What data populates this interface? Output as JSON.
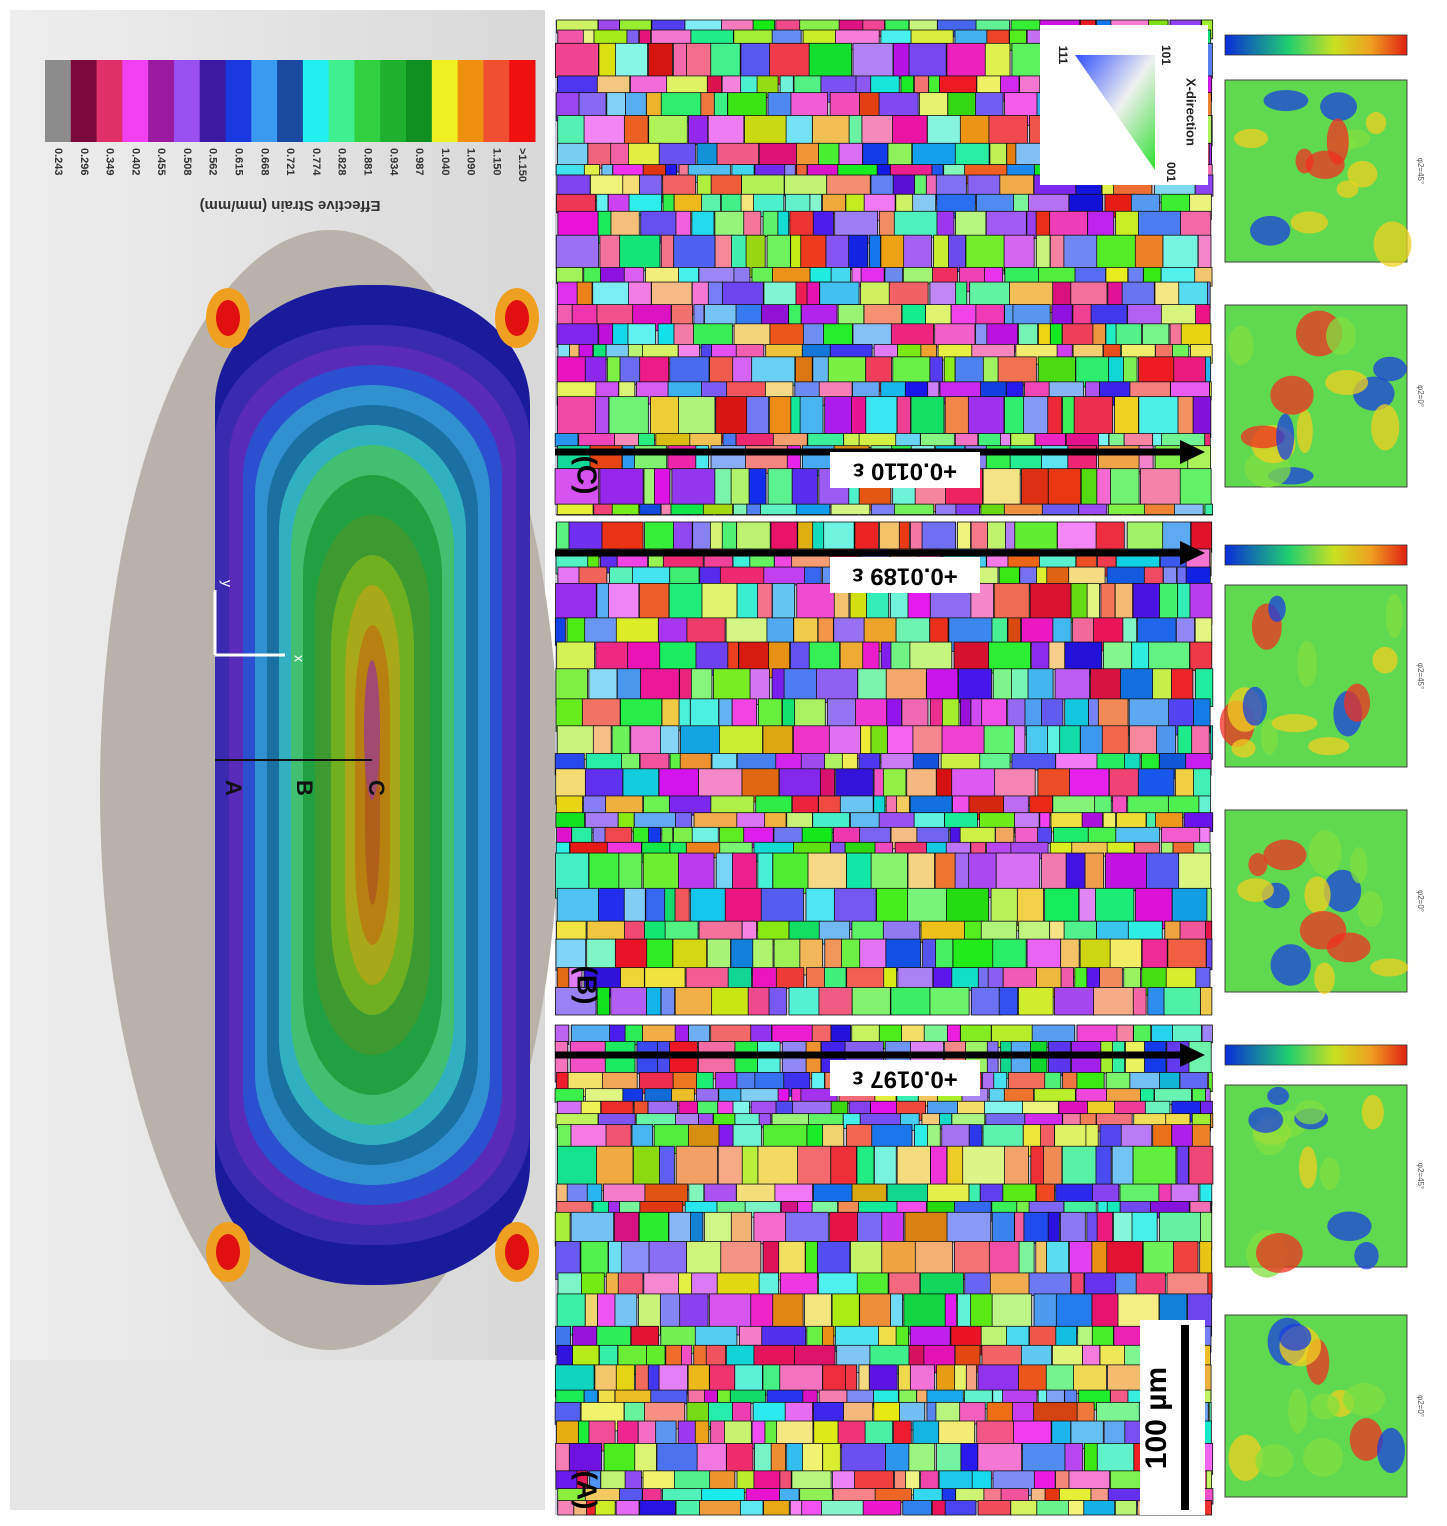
{
  "colorbar": {
    "title": "Effective Strain (mm/mm)",
    "labels": [
      "0.243",
      "0.296",
      "0.349",
      "0.402",
      "0.455",
      "0.508",
      "0.562",
      "0.615",
      "0.668",
      "0.721",
      "0.774",
      "0.828",
      "0.881",
      "0.934",
      "0.987",
      "1.040",
      "1.090",
      "1.150",
      ">1.150"
    ]
  },
  "strain_map": {
    "points": [
      "A",
      "B",
      "C"
    ],
    "axes": [
      "x",
      "y"
    ]
  },
  "panels": [
    {
      "label": "(C)",
      "strain": "+0.0110 ε"
    },
    {
      "label": "(B)",
      "strain": "+0.0189 ε"
    },
    {
      "label": "(A)",
      "strain": "+0.0197 ε"
    }
  ],
  "scale_bar": "100 µm",
  "ipf_key": {
    "corners": [
      "111",
      "101",
      "001"
    ],
    "direction": "X-direction"
  },
  "pole_figures": {
    "labels": [
      "φ2=45°",
      "φ2=0°"
    ]
  }
}
